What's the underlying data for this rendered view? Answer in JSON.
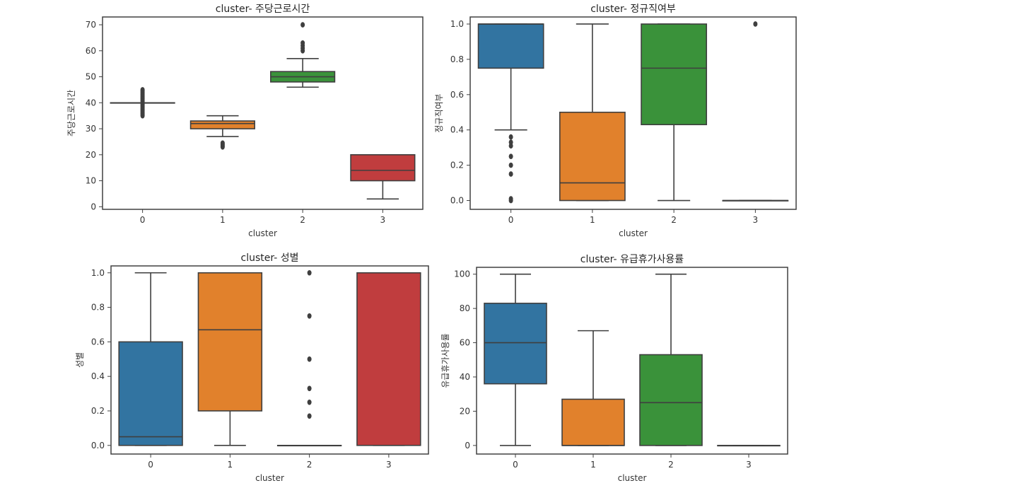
{
  "chart_data": [
    {
      "type": "box",
      "title": "cluster- 주당근로시간",
      "xlabel": "cluster",
      "ylabel": "주당근로시간",
      "categories": [
        "0",
        "1",
        "2",
        "3"
      ],
      "ylim": [
        -1,
        73
      ],
      "yticks": [
        0,
        10,
        20,
        30,
        40,
        50,
        60,
        70
      ],
      "yticklabels": [
        "0",
        "10",
        "20",
        "30",
        "40",
        "50",
        "60",
        "70"
      ],
      "boxes": [
        {
          "category": "0",
          "color": "#3274a1",
          "whisker_low": 40,
          "q1": 40,
          "median": 40,
          "q3": 40,
          "whisker_high": 40,
          "fliers": [
            35,
            35.5,
            36,
            36.5,
            37,
            37.5,
            38,
            38.5,
            39,
            39.5,
            40.5,
            41,
            41.5,
            42,
            42.5,
            43,
            43.5,
            44,
            44.5,
            45
          ]
        },
        {
          "category": "1",
          "color": "#e1812c",
          "whisker_low": 27,
          "q1": 30,
          "median": 32,
          "q3": 33,
          "whisker_high": 35,
          "fliers": [
            23,
            23.5,
            24,
            24.5
          ]
        },
        {
          "category": "2",
          "color": "#3a923a",
          "whisker_low": 46,
          "q1": 48,
          "median": 50,
          "q3": 52,
          "whisker_high": 57,
          "fliers": [
            60,
            61,
            62,
            63,
            70
          ]
        },
        {
          "category": "3",
          "color": "#c03d3e",
          "whisker_low": 3,
          "q1": 10,
          "median": 14,
          "q3": 20,
          "whisker_high": 20,
          "fliers": []
        }
      ]
    },
    {
      "type": "box",
      "title": "cluster- 정규직여부",
      "xlabel": "cluster",
      "ylabel": "정규직여부",
      "categories": [
        "0",
        "1",
        "2",
        "3"
      ],
      "ylim": [
        -0.05,
        1.04
      ],
      "yticks": [
        0,
        0.2,
        0.4,
        0.6,
        0.8,
        1.0
      ],
      "yticklabels": [
        "0.0",
        "0.2",
        "0.4",
        "0.6",
        "0.8",
        "1.0"
      ],
      "boxes": [
        {
          "category": "0",
          "color": "#3274a1",
          "whisker_low": 0.4,
          "q1": 0.75,
          "median": 1.0,
          "q3": 1.0,
          "whisker_high": 1.0,
          "fliers": [
            0.0,
            0.01,
            0.15,
            0.2,
            0.25,
            0.31,
            0.33,
            0.36
          ]
        },
        {
          "category": "1",
          "color": "#e1812c",
          "whisker_low": 0.0,
          "q1": 0.0,
          "median": 0.1,
          "q3": 0.5,
          "whisker_high": 1.0,
          "fliers": []
        },
        {
          "category": "2",
          "color": "#3a923a",
          "whisker_low": 0.0,
          "q1": 0.43,
          "median": 0.75,
          "q3": 1.0,
          "whisker_high": 1.0,
          "fliers": []
        },
        {
          "category": "3",
          "color": "#c03d3e",
          "whisker_low": 0.0,
          "q1": 0.0,
          "median": 0.0,
          "q3": 0.0,
          "whisker_high": 0.0,
          "fliers": [
            1.0
          ]
        }
      ]
    },
    {
      "type": "box",
      "title": "cluster- 성별",
      "xlabel": "cluster",
      "ylabel": "성별",
      "categories": [
        "0",
        "1",
        "2",
        "3"
      ],
      "ylim": [
        -0.05,
        1.04
      ],
      "yticks": [
        0,
        0.2,
        0.4,
        0.6,
        0.8,
        1.0
      ],
      "yticklabels": [
        "0.0",
        "0.2",
        "0.4",
        "0.6",
        "0.8",
        "1.0"
      ],
      "boxes": [
        {
          "category": "0",
          "color": "#3274a1",
          "whisker_low": 0.0,
          "q1": 0.0,
          "median": 0.05,
          "q3": 0.6,
          "whisker_high": 1.0,
          "fliers": []
        },
        {
          "category": "1",
          "color": "#e1812c",
          "whisker_low": 0.0,
          "q1": 0.2,
          "median": 0.67,
          "q3": 1.0,
          "whisker_high": 1.0,
          "fliers": []
        },
        {
          "category": "2",
          "color": "#3a923a",
          "whisker_low": 0.0,
          "q1": 0.0,
          "median": 0.0,
          "q3": 0.0,
          "whisker_high": 0.0,
          "fliers": [
            0.17,
            0.25,
            0.33,
            0.5,
            0.75,
            1.0
          ]
        },
        {
          "category": "3",
          "color": "#c03d3e",
          "whisker_low": 0.0,
          "q1": 0.0,
          "median": 1.0,
          "q3": 1.0,
          "whisker_high": 1.0,
          "fliers": []
        }
      ]
    },
    {
      "type": "box",
      "title": "cluster- 유급휴가사용률",
      "xlabel": "cluster",
      "ylabel": "유급휴가사용률",
      "categories": [
        "0",
        "1",
        "2",
        "3"
      ],
      "ylim": [
        -5,
        104
      ],
      "yticks": [
        0,
        20,
        40,
        60,
        80,
        100
      ],
      "yticklabels": [
        "0",
        "20",
        "40",
        "60",
        "80",
        "100"
      ],
      "boxes": [
        {
          "category": "0",
          "color": "#3274a1",
          "whisker_low": 0,
          "q1": 36,
          "median": 60,
          "q3": 83,
          "whisker_high": 100,
          "fliers": []
        },
        {
          "category": "1",
          "color": "#e1812c",
          "whisker_low": 0,
          "q1": 0,
          "median": 0,
          "q3": 27,
          "whisker_high": 67,
          "fliers": []
        },
        {
          "category": "2",
          "color": "#3a923a",
          "whisker_low": 0,
          "q1": 0,
          "median": 25,
          "q3": 53,
          "whisker_high": 100,
          "fliers": []
        },
        {
          "category": "3",
          "color": "#c03d3e",
          "whisker_low": 0,
          "q1": 0,
          "median": 0,
          "q3": 0,
          "whisker_high": 0,
          "fliers": []
        }
      ]
    }
  ]
}
